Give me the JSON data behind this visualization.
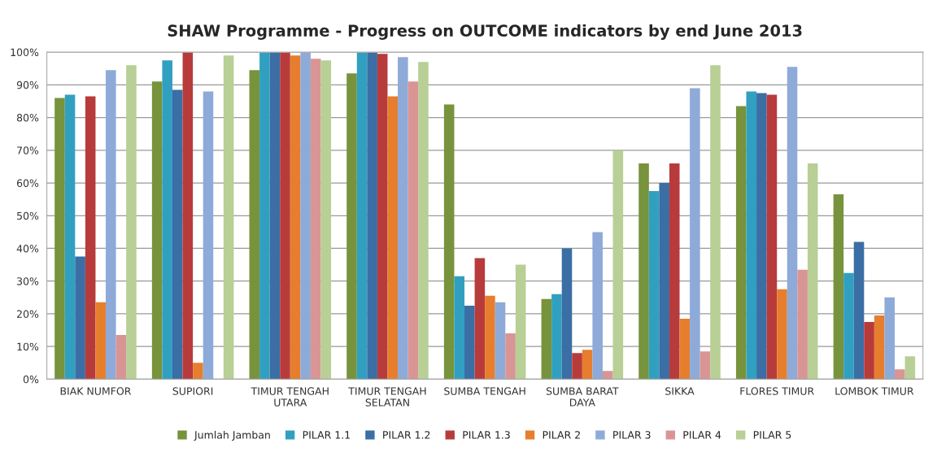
{
  "chart_data": {
    "type": "bar",
    "title": "SHAW Programme - Progress on OUTCOME indicators by end June 2013",
    "categories": [
      "BIAK NUMFOR",
      "SUPIORI",
      "TIMUR TENGAH\nUTARA",
      "TIMUR TENGAH\nSELATAN",
      "SUMBA TENGAH",
      "SUMBA BARAT\nDAYA",
      "SIKKA",
      "FLORES TIMUR",
      "LOMBOK TIMUR"
    ],
    "series": [
      {
        "name": "Jumlah Jamban",
        "color": "#77933c",
        "values": [
          86,
          91,
          94.5,
          93.5,
          84,
          24.5,
          66,
          83.5,
          56.5
        ]
      },
      {
        "name": "PILAR 1.1",
        "color": "#31a0c0",
        "values": [
          87,
          97.5,
          100,
          100,
          31.5,
          26,
          57.5,
          88,
          32.5
        ]
      },
      {
        "name": "PILAR 1.2",
        "color": "#3a6ea5",
        "values": [
          37.5,
          88.5,
          100,
          100,
          22.5,
          40,
          60,
          87.5,
          42
        ]
      },
      {
        "name": "PILAR 1.3",
        "color": "#b83b3b",
        "values": [
          86.5,
          100,
          100,
          99.5,
          37,
          8,
          66,
          87,
          17.5
        ]
      },
      {
        "name": "PILAR 2",
        "color": "#e67e2e",
        "values": [
          23.5,
          5,
          99,
          86.5,
          25.5,
          9,
          18.5,
          27.5,
          19.5
        ]
      },
      {
        "name": "PILAR 3",
        "color": "#8eaad8",
        "values": [
          94.5,
          88,
          100,
          98.5,
          23.5,
          45,
          89,
          95.5,
          25
        ]
      },
      {
        "name": "PILAR 4",
        "color": "#d99594",
        "values": [
          13.5,
          0,
          98,
          91,
          14,
          2.5,
          8.5,
          33.5,
          3
        ]
      },
      {
        "name": "PILAR 5",
        "color": "#b8cf95",
        "values": [
          96,
          99,
          97.5,
          97,
          35,
          70,
          96,
          66,
          7
        ]
      }
    ],
    "ylim": [
      0,
      100
    ],
    "yticks": [
      {
        "value": 0,
        "label": "0%"
      },
      {
        "value": 10,
        "label": "10%"
      },
      {
        "value": 20,
        "label": "20%"
      },
      {
        "value": 30,
        "label": "30%"
      },
      {
        "value": 40,
        "label": "40%"
      },
      {
        "value": 50,
        "label": "50%"
      },
      {
        "value": 60,
        "label": "60%"
      },
      {
        "value": 70,
        "label": "70%"
      },
      {
        "value": 80,
        "label": "80%"
      },
      {
        "value": 90,
        "label": "90%"
      },
      {
        "value": 100,
        "label": "100%"
      }
    ],
    "grid": "y",
    "legend": "bottom"
  }
}
